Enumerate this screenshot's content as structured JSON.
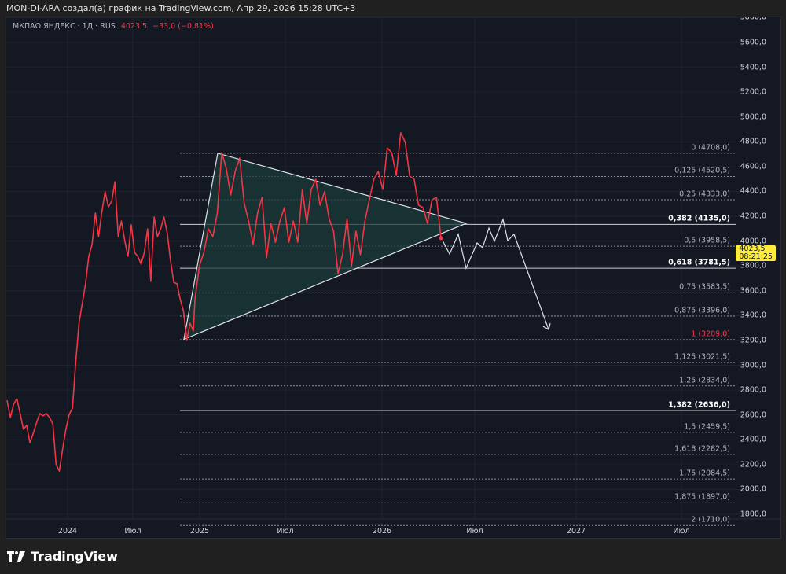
{
  "credit": "MON-DI-ARA создал(а) график на TradingView.com, Апр 29, 2026 15:28 UTC+3",
  "legend": {
    "symbol": "МКПАО ЯНДЕКС · 1Д · RUS",
    "price": "4023,5",
    "change": "−33,0 (−0,81%)"
  },
  "price_tag": {
    "price": "4023,5",
    "countdown": "08:21:25"
  },
  "brand": "TradingView",
  "colors": {
    "series": "#f23645",
    "triangle_fill": "#1a3a3a",
    "drawing": "#e0e3eb",
    "background": "#141823",
    "price_tag": "#ffeb3b"
  },
  "chart_data": {
    "type": "line",
    "symbol": "МКПАО ЯНДЕКС",
    "interval": "1Д",
    "ylim": [
      1710,
      5800
    ],
    "y_ticks": [
      "5800,0",
      "5600,0",
      "5400,0",
      "5200,0",
      "5000,0",
      "4800,0",
      "4600,0",
      "4400,0",
      "4200,0",
      "4000,0",
      "3800,0",
      "3600,0",
      "3400,0",
      "3200,0",
      "3000,0",
      "2800,0",
      "2600,0",
      "2400,0",
      "2200,0",
      "2000,0",
      "1800,0"
    ],
    "x_ticks": [
      "2024",
      "Июл",
      "2025",
      "Июл",
      "2026",
      "Июл",
      "2027",
      "Июл"
    ],
    "close": [
      2718,
      2579,
      2687,
      2731,
      2611,
      2484,
      2516,
      2376,
      2452,
      2535,
      2611,
      2592,
      2611,
      2579,
      2528,
      2199,
      2148,
      2326,
      2484,
      2604,
      2655,
      3022,
      3339,
      3497,
      3656,
      3877,
      3972,
      4226,
      4036,
      4238,
      4397,
      4276,
      4321,
      4479,
      4036,
      4162,
      4004,
      3877,
      4131,
      3909,
      3877,
      3814,
      3909,
      4099,
      3675,
      4194,
      4036,
      4099,
      4194,
      4067,
      3846,
      3668,
      3656,
      3529,
      3434,
      3200,
      3339,
      3276,
      3529,
      3801,
      3909,
      4099,
      4036,
      4226,
      4713,
      4587,
      4371,
      4561,
      4669,
      4308,
      4162,
      3972,
      4226,
      4352,
      3865,
      4143,
      3991,
      4162,
      4270,
      3991,
      4162,
      3991,
      4416,
      4143,
      4416,
      4498,
      4289,
      4397,
      4181,
      4080,
      3738,
      3890,
      4181,
      3801,
      4080,
      3890,
      4162,
      4333,
      4498,
      4561,
      4416,
      4751,
      4713,
      4530,
      4872,
      4796,
      4524,
      4498,
      4289,
      4270,
      4143,
      4333,
      4352,
      4023.5
    ],
    "triangle": {
      "low": 3209,
      "high": 4708,
      "apex": 4143
    },
    "projection": [
      4004,
      3896,
      4055,
      3782,
      3985,
      3947,
      4105,
      3998,
      4175,
      4004,
      4055,
      3288
    ],
    "fib_levels": [
      {
        "label": "0 (4708,0)",
        "value": 4708,
        "style": "normal"
      },
      {
        "label": "0,125 (4520,5)",
        "value": 4520.5,
        "style": "normal"
      },
      {
        "label": "0,25 (4333,0)",
        "value": 4333,
        "style": "normal"
      },
      {
        "label": "0,382 (4135,0)",
        "value": 4135,
        "style": "bold"
      },
      {
        "label": "0,5 (3958,5)",
        "value": 3958.5,
        "style": "normal"
      },
      {
        "label": "0,618 (3781,5)",
        "value": 3781.5,
        "style": "bold"
      },
      {
        "label": "0,75 (3583,5)",
        "value": 3583.5,
        "style": "normal"
      },
      {
        "label": "0,875 (3396,0)",
        "value": 3396,
        "style": "normal"
      },
      {
        "label": "1 (3209,0)",
        "value": 3209,
        "style": "red"
      },
      {
        "label": "1,125 (3021,5)",
        "value": 3021.5,
        "style": "normal"
      },
      {
        "label": "1,25 (2834,0)",
        "value": 2834,
        "style": "normal"
      },
      {
        "label": "1,382 (2636,0)",
        "value": 2636,
        "style": "bold"
      },
      {
        "label": "1,5 (2459,5)",
        "value": 2459.5,
        "style": "normal"
      },
      {
        "label": "1,618 (2282,5)",
        "value": 2282.5,
        "style": "normal"
      },
      {
        "label": "1,75 (2084,5)",
        "value": 2084.5,
        "style": "normal"
      },
      {
        "label": "1,875 (1897,0)",
        "value": 1897,
        "style": "normal"
      },
      {
        "label": "2 (1710,0)",
        "value": 1710,
        "style": "normal"
      }
    ]
  }
}
